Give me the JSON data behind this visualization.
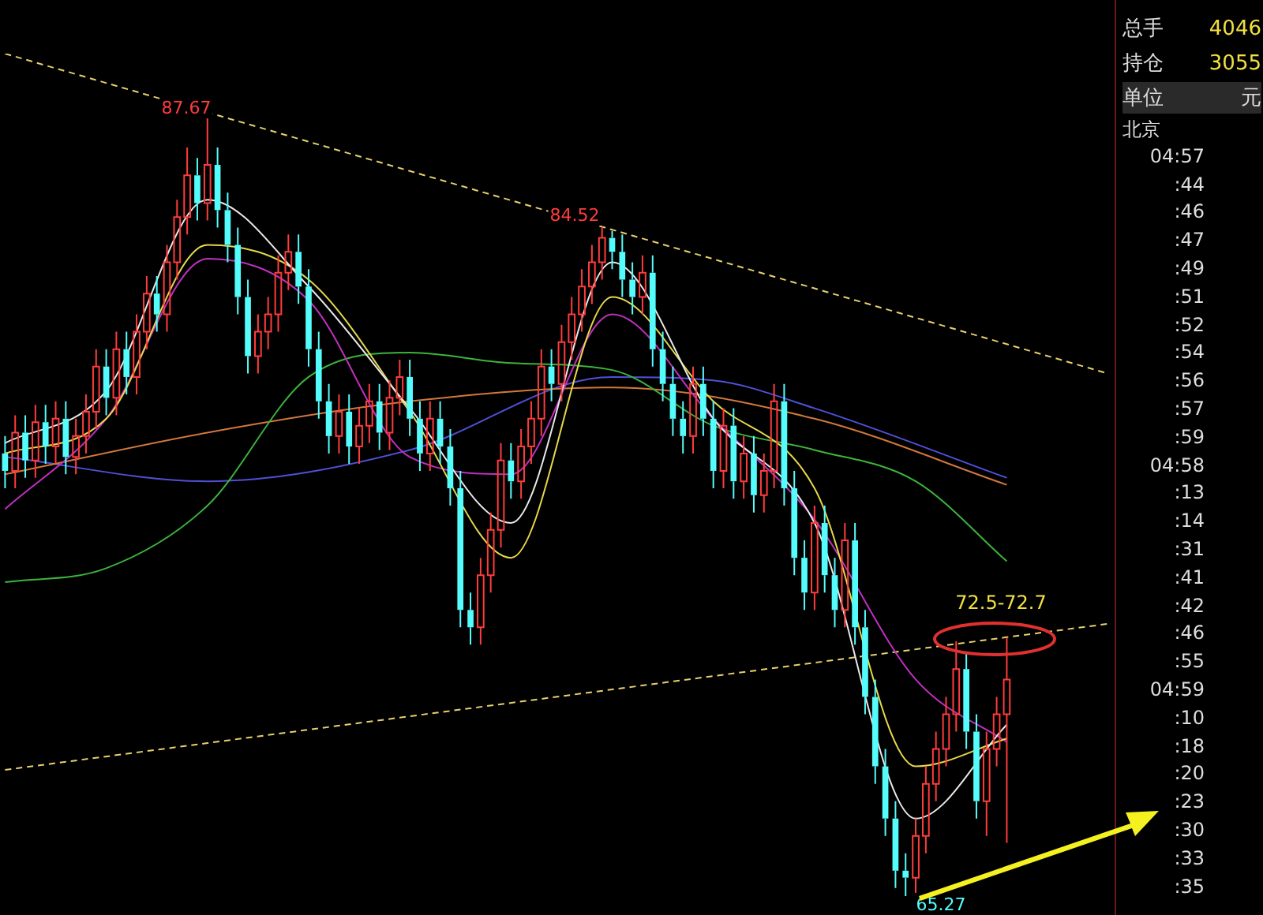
{
  "chart_data": {
    "type": "candlestick",
    "tick_labels": false,
    "legend": false,
    "categories": [
      null,
      null,
      null,
      null,
      null,
      null,
      null,
      null,
      null,
      null,
      null,
      null,
      null,
      null,
      null,
      null,
      null,
      null,
      null,
      null,
      null,
      null,
      null,
      null,
      null,
      null,
      null,
      null,
      null,
      null,
      null,
      null,
      null,
      null,
      null,
      null,
      null,
      null,
      null,
      null,
      null,
      null,
      null,
      null,
      null,
      null,
      null,
      null,
      null,
      null,
      null,
      null,
      null,
      null,
      null,
      null,
      null,
      null,
      null,
      null,
      null,
      null,
      null,
      null,
      null,
      null,
      null,
      null,
      null,
      null,
      null,
      null,
      null,
      null,
      null,
      null,
      null,
      null,
      null,
      null,
      null,
      null,
      null,
      null,
      null,
      null,
      null,
      null,
      null,
      null,
      null,
      null,
      null,
      null,
      null,
      null,
      null,
      null,
      null,
      null,
      null,
      null,
      null,
      null,
      null,
      null,
      null,
      null,
      null,
      null
    ],
    "ohlc": [
      [
        78.0,
        78.5,
        77.0,
        77.5
      ],
      [
        77.5,
        79.1,
        77.0,
        78.6
      ],
      [
        78.6,
        79.1,
        77.3,
        77.8
      ],
      [
        77.8,
        79.4,
        77.3,
        78.9
      ],
      [
        78.9,
        79.4,
        77.7,
        78.2
      ],
      [
        78.2,
        79.5,
        77.7,
        79.0
      ],
      [
        79.0,
        79.5,
        77.4,
        77.9
      ],
      [
        77.9,
        79.0,
        77.4,
        78.5
      ],
      [
        78.5,
        79.7,
        78.0,
        79.2
      ],
      [
        79.2,
        81.0,
        78.7,
        80.5
      ],
      [
        80.5,
        81.0,
        79.1,
        79.6
      ],
      [
        79.6,
        81.5,
        79.1,
        81.0
      ],
      [
        81.0,
        81.5,
        79.7,
        80.2
      ],
      [
        80.2,
        82.0,
        79.7,
        81.5
      ],
      [
        81.5,
        83.1,
        81.0,
        82.6
      ],
      [
        82.6,
        83.1,
        81.5,
        82.0
      ],
      [
        82.0,
        84.0,
        81.5,
        83.5
      ],
      [
        83.5,
        85.3,
        83.0,
        84.8
      ],
      [
        84.8,
        86.8,
        84.3,
        86.0
      ],
      [
        86.0,
        86.5,
        84.7,
        85.2
      ],
      [
        85.2,
        87.67,
        84.7,
        86.3
      ],
      [
        86.3,
        86.8,
        84.5,
        85.0
      ],
      [
        85.0,
        85.5,
        83.5,
        84.0
      ],
      [
        84.0,
        84.5,
        82.0,
        82.5
      ],
      [
        82.5,
        83.0,
        80.3,
        80.8
      ],
      [
        80.8,
        82.0,
        80.3,
        81.5
      ],
      [
        81.5,
        82.5,
        81.0,
        82.0
      ],
      [
        82.0,
        83.7,
        81.5,
        83.2
      ],
      [
        83.2,
        84.3,
        82.7,
        83.8
      ],
      [
        83.8,
        84.3,
        82.3,
        82.8
      ],
      [
        82.8,
        83.3,
        80.5,
        81.0
      ],
      [
        81.0,
        81.5,
        79.0,
        79.5
      ],
      [
        79.5,
        80.0,
        78.0,
        78.5
      ],
      [
        78.5,
        79.7,
        78.0,
        79.2
      ],
      [
        79.2,
        79.7,
        77.7,
        78.2
      ],
      [
        78.2,
        79.3,
        77.7,
        78.8
      ],
      [
        78.8,
        80.0,
        78.3,
        79.5
      ],
      [
        79.5,
        80.0,
        78.1,
        78.6
      ],
      [
        78.6,
        80.1,
        78.1,
        79.6
      ],
      [
        79.6,
        80.7,
        79.1,
        80.2
      ],
      [
        80.2,
        80.7,
        78.5,
        79.0
      ],
      [
        79.0,
        79.5,
        77.5,
        78.0
      ],
      [
        78.0,
        79.5,
        77.5,
        79.0
      ],
      [
        79.0,
        79.5,
        77.7,
        78.2
      ],
      [
        78.2,
        78.7,
        76.5,
        77.0
      ],
      [
        77.0,
        77.5,
        73.0,
        73.5
      ],
      [
        73.5,
        74.0,
        72.5,
        73.0
      ],
      [
        73.0,
        75.0,
        72.5,
        74.5
      ],
      [
        74.5,
        76.3,
        74.0,
        75.8
      ],
      [
        75.8,
        78.3,
        75.3,
        77.8
      ],
      [
        77.8,
        78.3,
        76.7,
        77.2
      ],
      [
        77.2,
        78.7,
        76.7,
        78.2
      ],
      [
        78.2,
        79.5,
        77.7,
        79.0
      ],
      [
        79.0,
        81.0,
        78.5,
        80.5
      ],
      [
        80.5,
        81.0,
        79.5,
        80.0
      ],
      [
        80.0,
        81.7,
        79.5,
        81.2
      ],
      [
        81.2,
        82.5,
        80.7,
        82.0
      ],
      [
        82.0,
        83.3,
        81.5,
        82.8
      ],
      [
        82.8,
        84.0,
        82.3,
        83.5
      ],
      [
        83.5,
        84.52,
        83.0,
        84.2
      ],
      [
        84.2,
        84.4,
        83.3,
        83.8
      ],
      [
        83.8,
        84.3,
        82.5,
        83.0
      ],
      [
        83.0,
        83.5,
        82.0,
        82.5
      ],
      [
        82.5,
        83.7,
        82.0,
        83.2
      ],
      [
        83.2,
        83.7,
        80.5,
        81.0
      ],
      [
        81.0,
        81.5,
        79.5,
        80.0
      ],
      [
        80.0,
        80.5,
        78.5,
        79.0
      ],
      [
        79.0,
        79.5,
        78.0,
        78.5
      ],
      [
        78.5,
        80.5,
        78.0,
        80.0
      ],
      [
        80.0,
        80.5,
        78.5,
        79.0
      ],
      [
        79.0,
        79.5,
        77.0,
        77.5
      ],
      [
        77.5,
        79.3,
        77.0,
        78.8
      ],
      [
        78.8,
        79.3,
        76.7,
        77.2
      ],
      [
        77.2,
        78.5,
        76.7,
        78.0
      ],
      [
        78.0,
        78.5,
        76.3,
        76.8
      ],
      [
        76.8,
        78.0,
        76.3,
        77.5
      ],
      [
        77.5,
        80.0,
        77.0,
        79.5
      ],
      [
        79.5,
        80.0,
        76.5,
        77.0
      ],
      [
        77.0,
        77.5,
        74.5,
        75.0
      ],
      [
        75.0,
        75.5,
        73.5,
        74.0
      ],
      [
        74.0,
        76.5,
        73.5,
        76.0
      ],
      [
        76.0,
        76.5,
        74.0,
        74.5
      ],
      [
        74.5,
        75.0,
        73.0,
        73.5
      ],
      [
        73.5,
        76.0,
        73.0,
        75.5
      ],
      [
        75.5,
        76.0,
        72.5,
        73.0
      ],
      [
        73.0,
        73.5,
        70.5,
        71.0
      ],
      [
        71.0,
        71.5,
        68.5,
        69.0
      ],
      [
        69.0,
        69.5,
        67.0,
        67.5
      ],
      [
        67.5,
        68.0,
        65.5,
        66.0
      ],
      [
        66.0,
        66.5,
        65.27,
        65.8
      ],
      [
        65.8,
        67.5,
        65.3,
        67.0
      ],
      [
        67.0,
        69.0,
        66.5,
        68.5
      ],
      [
        68.5,
        70.0,
        68.0,
        69.5
      ],
      [
        69.5,
        71.0,
        69.0,
        70.5
      ],
      [
        70.5,
        72.6,
        70.0,
        71.8
      ],
      [
        71.8,
        72.3,
        69.5,
        70.0
      ],
      [
        70.0,
        70.5,
        67.5,
        68.0
      ],
      [
        68.0,
        70.0,
        67.0,
        69.5
      ],
      [
        69.5,
        71.0,
        69.0,
        70.5
      ],
      [
        70.5,
        72.7,
        66.8,
        71.5
      ],
      null,
      null,
      null,
      null,
      null,
      null,
      null,
      null,
      null,
      null
    ],
    "series": [
      {
        "type": "line",
        "color": "#e8e8e8",
        "values": [
          78.3,
          null,
          null,
          null,
          null,
          null,
          null,
          null,
          null,
          null,
          79.8,
          null,
          null,
          null,
          null,
          null,
          null,
          null,
          null,
          null,
          85.3,
          null,
          null,
          null,
          null,
          null,
          null,
          null,
          null,
          null,
          82.8,
          null,
          null,
          null,
          null,
          null,
          null,
          null,
          null,
          null,
          79.3,
          null,
          null,
          null,
          null,
          null,
          null,
          null,
          null,
          null,
          76.0,
          null,
          null,
          null,
          null,
          null,
          null,
          null,
          null,
          null,
          83.5,
          null,
          null,
          null,
          null,
          null,
          null,
          null,
          null,
          null,
          79.0,
          null,
          null,
          null,
          null,
          null,
          null,
          null,
          null,
          null,
          76.0,
          null,
          null,
          null,
          null,
          null,
          null,
          null,
          null,
          null,
          67.5,
          null,
          null,
          null,
          null,
          null,
          null,
          null,
          null,
          70.2,
          null,
          null,
          null,
          null,
          null,
          null,
          null,
          null,
          null,
          null
        ]
      },
      {
        "type": "line",
        "color": "#e6d84a",
        "values": [
          78.0,
          null,
          null,
          null,
          null,
          null,
          null,
          null,
          null,
          null,
          79.0,
          null,
          null,
          null,
          null,
          null,
          null,
          null,
          null,
          null,
          84.0,
          null,
          null,
          null,
          null,
          null,
          null,
          null,
          null,
          null,
          83.0,
          null,
          null,
          null,
          null,
          null,
          null,
          null,
          null,
          null,
          79.2,
          null,
          null,
          null,
          null,
          null,
          null,
          null,
          null,
          null,
          75.0,
          null,
          null,
          null,
          null,
          null,
          null,
          null,
          null,
          null,
          82.5,
          null,
          null,
          null,
          null,
          null,
          null,
          null,
          null,
          null,
          79.5,
          null,
          null,
          null,
          null,
          null,
          null,
          null,
          null,
          null,
          77.0,
          null,
          null,
          null,
          null,
          null,
          null,
          null,
          null,
          null,
          69.0,
          null,
          null,
          null,
          null,
          null,
          null,
          null,
          null,
          69.8,
          null,
          null,
          null,
          null,
          null,
          null,
          null,
          null,
          null,
          null
        ]
      },
      {
        "type": "line",
        "color": "#c030c0",
        "values": [
          76.4,
          null,
          null,
          null,
          null,
          null,
          null,
          null,
          null,
          null,
          79.0,
          null,
          null,
          null,
          null,
          null,
          null,
          null,
          null,
          null,
          83.6,
          null,
          null,
          null,
          null,
          null,
          null,
          null,
          null,
          null,
          82.4,
          null,
          null,
          null,
          null,
          null,
          null,
          null,
          null,
          null,
          77.9,
          null,
          null,
          null,
          null,
          null,
          null,
          null,
          null,
          null,
          77.4,
          null,
          null,
          null,
          null,
          null,
          null,
          null,
          null,
          null,
          82.0,
          null,
          null,
          null,
          null,
          null,
          null,
          null,
          null,
          null,
          79.0,
          null,
          null,
          null,
          null,
          null,
          null,
          null,
          null,
          null,
          76.1,
          null,
          null,
          null,
          null,
          null,
          null,
          null,
          null,
          null,
          71.5,
          null,
          null,
          null,
          null,
          null,
          null,
          null,
          null,
          69.7,
          null,
          null,
          null,
          null,
          null,
          null,
          null,
          null,
          null,
          null
        ]
      },
      {
        "type": "line",
        "color": "#3cb43c",
        "values": [
          74.3,
          null,
          null,
          null,
          null,
          null,
          null,
          null,
          null,
          null,
          74.7,
          null,
          null,
          null,
          null,
          null,
          null,
          null,
          null,
          null,
          76.5,
          null,
          null,
          null,
          null,
          null,
          null,
          null,
          null,
          null,
          80.2,
          null,
          null,
          null,
          null,
          null,
          null,
          null,
          null,
          null,
          80.9,
          null,
          null,
          null,
          null,
          null,
          null,
          null,
          null,
          null,
          80.6,
          null,
          null,
          null,
          null,
          null,
          null,
          null,
          null,
          null,
          80.4,
          null,
          null,
          null,
          null,
          null,
          null,
          null,
          null,
          null,
          78.8,
          null,
          null,
          null,
          null,
          null,
          null,
          null,
          null,
          null,
          78.1,
          null,
          null,
          null,
          null,
          null,
          null,
          null,
          null,
          null,
          77.2,
          null,
          null,
          null,
          null,
          null,
          null,
          null,
          null,
          74.9,
          null,
          null,
          null,
          null,
          null,
          null,
          null,
          null,
          null,
          null
        ]
      },
      {
        "type": "line",
        "color": "#d2783c",
        "values": [
          77.4,
          null,
          null,
          null,
          null,
          null,
          null,
          null,
          null,
          null,
          null,
          null,
          null,
          null,
          null,
          null,
          null,
          null,
          null,
          null,
          78.6,
          null,
          null,
          null,
          null,
          null,
          null,
          null,
          null,
          null,
          null,
          null,
          null,
          null,
          null,
          null,
          null,
          null,
          null,
          null,
          79.5,
          null,
          null,
          null,
          null,
          null,
          null,
          null,
          null,
          null,
          null,
          null,
          null,
          null,
          null,
          null,
          null,
          null,
          null,
          null,
          79.9,
          null,
          null,
          null,
          null,
          null,
          null,
          null,
          null,
          null,
          null,
          null,
          null,
          null,
          null,
          null,
          null,
          null,
          null,
          null,
          79.0,
          null,
          null,
          null,
          null,
          null,
          null,
          null,
          null,
          null,
          null,
          null,
          null,
          null,
          null,
          null,
          null,
          null,
          null,
          77.1,
          null,
          null,
          null,
          null,
          null,
          null,
          null,
          null,
          null,
          null
        ]
      },
      {
        "type": "line",
        "color": "#5050d8",
        "values": [
          77.9,
          null,
          null,
          null,
          null,
          null,
          null,
          null,
          null,
          null,
          null,
          null,
          null,
          null,
          null,
          null,
          null,
          null,
          null,
          null,
          77.2,
          null,
          null,
          null,
          null,
          null,
          null,
          null,
          null,
          null,
          null,
          null,
          null,
          null,
          null,
          null,
          null,
          null,
          null,
          null,
          78.1,
          null,
          null,
          null,
          null,
          null,
          null,
          null,
          null,
          null,
          null,
          null,
          null,
          null,
          null,
          null,
          null,
          null,
          null,
          null,
          80.2,
          null,
          null,
          null,
          null,
          null,
          null,
          null,
          null,
          null,
          80.1,
          null,
          null,
          null,
          null,
          null,
          null,
          null,
          null,
          null,
          79.3,
          null,
          null,
          null,
          null,
          null,
          null,
          null,
          null,
          null,
          null,
          null,
          null,
          null,
          null,
          null,
          null,
          null,
          null,
          77.3,
          null,
          null,
          null,
          null,
          null,
          null,
          null,
          null,
          null,
          null
        ]
      },
      {
        "type": "line",
        "color": "#e8d070",
        "line_style": "dashed",
        "values": [
          89.5,
          null,
          null,
          null,
          null,
          null,
          null,
          null,
          null,
          null,
          null,
          null,
          null,
          null,
          null,
          null,
          null,
          null,
          null,
          null,
          null,
          null,
          null,
          null,
          null,
          null,
          null,
          null,
          null,
          null,
          null,
          null,
          null,
          null,
          null,
          null,
          null,
          null,
          null,
          null,
          null,
          null,
          null,
          null,
          null,
          null,
          null,
          null,
          null,
          null,
          null,
          null,
          null,
          null,
          null,
          null,
          null,
          null,
          null,
          null,
          null,
          null,
          null,
          null,
          null,
          null,
          null,
          null,
          null,
          null,
          null,
          null,
          null,
          null,
          null,
          null,
          null,
          null,
          null,
          null,
          null,
          null,
          null,
          null,
          null,
          null,
          null,
          null,
          null,
          null,
          null,
          null,
          null,
          null,
          null,
          null,
          null,
          null,
          null,
          null,
          null,
          null,
          null,
          null,
          null,
          null,
          null,
          null,
          null,
          80.3
        ]
      },
      {
        "type": "line",
        "color": "#e8d070",
        "line_style": "dashed",
        "values": [
          68.9,
          null,
          null,
          null,
          null,
          null,
          null,
          null,
          null,
          null,
          null,
          null,
          null,
          null,
          null,
          null,
          null,
          null,
          null,
          null,
          null,
          null,
          null,
          null,
          null,
          null,
          null,
          null,
          null,
          null,
          null,
          null,
          null,
          null,
          null,
          null,
          null,
          null,
          null,
          null,
          null,
          null,
          null,
          null,
          null,
          null,
          null,
          null,
          null,
          null,
          null,
          null,
          null,
          null,
          null,
          null,
          null,
          null,
          null,
          null,
          null,
          null,
          null,
          null,
          null,
          null,
          null,
          null,
          null,
          null,
          null,
          null,
          null,
          null,
          null,
          null,
          null,
          null,
          null,
          null,
          null,
          null,
          null,
          null,
          null,
          null,
          null,
          null,
          null,
          null,
          null,
          null,
          null,
          null,
          null,
          null,
          null,
          null,
          null,
          null,
          null,
          null,
          null,
          null,
          null,
          null,
          null,
          null,
          null,
          73.1
        ]
      }
    ],
    "annotations": [
      "87.67",
      "84.52",
      "65.27",
      "72.5-72.7",
      "总手",
      "4046",
      "持仓",
      "3055",
      "单位",
      "元",
      "北京",
      "04:57",
      ":44",
      ":46",
      ":47",
      ":49",
      ":51",
      ":52",
      ":54",
      ":56",
      ":57",
      ":59",
      "04:58",
      ":13",
      ":14",
      ":31",
      ":41",
      ":42",
      ":46",
      ":55",
      "04:59",
      ":10",
      ":18",
      ":20",
      ":23",
      ":30",
      ":33",
      ":35"
    ]
  }
}
